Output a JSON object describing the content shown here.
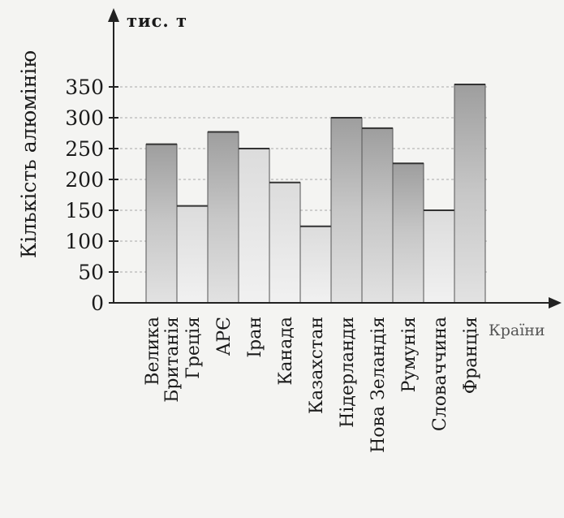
{
  "chart_data": {
    "type": "bar",
    "title": "",
    "ylabel": "Кількість алюмінію",
    "yunit": "тис. т",
    "xlabel": "Країни",
    "ylim": [
      0,
      375
    ],
    "yticks": [
      0,
      50,
      100,
      150,
      200,
      250,
      300,
      350
    ],
    "grid": true,
    "categories": [
      "Велика Британія",
      "Греція",
      "АРЄ",
      "Іран",
      "Канада",
      "Казахстан",
      "Нідерланди",
      "Нова Зеландія",
      "Румунія",
      "Словаччина",
      "Франція"
    ],
    "category_lines": [
      [
        "Велика",
        "Британія"
      ],
      [
        "Греція"
      ],
      [
        "АРЄ"
      ],
      [
        "Іран"
      ],
      [
        "Канада"
      ],
      [
        "Казахстан"
      ],
      [
        "Нідерланди"
      ],
      [
        "Нова Зеландія"
      ],
      [
        "Румунія"
      ],
      [
        "Словаччина"
      ],
      [
        "Франція"
      ]
    ],
    "values": [
      257,
      157,
      277,
      250,
      195,
      124,
      300,
      283,
      226,
      150,
      354
    ],
    "bar_colors": {
      "light": "#e8e8e8",
      "dark": "#b3b3b3",
      "dark_bars": [
        0,
        2,
        6,
        7,
        8,
        10
      ]
    }
  }
}
